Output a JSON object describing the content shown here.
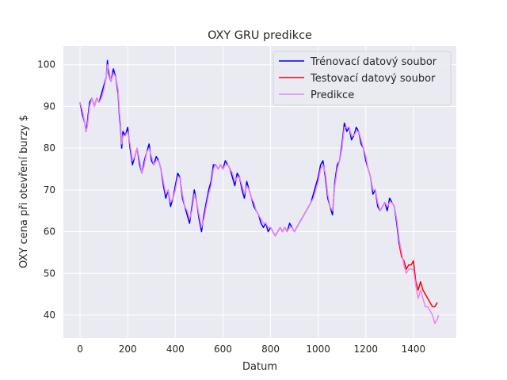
{
  "chart_data": {
    "type": "line",
    "title": "OXY GRU predikce",
    "xlabel": "Datum",
    "ylabel": "OXY cena při otevření burzy $",
    "xlim": [
      -70,
      1580
    ],
    "ylim": [
      34.5,
      104.5
    ],
    "x_ticks": [
      0,
      200,
      400,
      600,
      800,
      1000,
      1200,
      1400
    ],
    "y_ticks": [
      40,
      50,
      60,
      70,
      80,
      90,
      100
    ],
    "grid": true,
    "legend_position": "top-right",
    "colors": {
      "background": "#eaeaf2",
      "grid": "#ffffff",
      "train": "#0000ff",
      "test": "#ff0000",
      "prediction": "#ee82ee"
    },
    "series": [
      {
        "name": "Trénovací datový soubor",
        "color": "#0000ff",
        "points": [
          [
            0,
            91
          ],
          [
            10,
            88
          ],
          [
            20,
            86
          ],
          [
            25,
            84
          ],
          [
            30,
            86
          ],
          [
            40,
            91
          ],
          [
            50,
            92
          ],
          [
            60,
            90
          ],
          [
            70,
            92
          ],
          [
            80,
            91
          ],
          [
            90,
            93
          ],
          [
            100,
            95
          ],
          [
            110,
            97
          ],
          [
            115,
            101
          ],
          [
            120,
            98
          ],
          [
            130,
            96
          ],
          [
            140,
            99
          ],
          [
            150,
            97
          ],
          [
            160,
            93
          ],
          [
            165,
            88
          ],
          [
            170,
            85
          ],
          [
            175,
            80
          ],
          [
            180,
            84
          ],
          [
            190,
            83
          ],
          [
            200,
            85
          ],
          [
            210,
            80
          ],
          [
            220,
            76
          ],
          [
            230,
            78
          ],
          [
            240,
            80
          ],
          [
            250,
            76
          ],
          [
            260,
            74
          ],
          [
            270,
            77
          ],
          [
            280,
            79
          ],
          [
            290,
            81
          ],
          [
            300,
            77
          ],
          [
            310,
            76
          ],
          [
            320,
            78
          ],
          [
            330,
            77
          ],
          [
            340,
            75
          ],
          [
            350,
            71
          ],
          [
            360,
            68
          ],
          [
            370,
            70
          ],
          [
            380,
            66
          ],
          [
            390,
            68
          ],
          [
            400,
            71
          ],
          [
            410,
            74
          ],
          [
            420,
            73
          ],
          [
            430,
            68
          ],
          [
            440,
            66
          ],
          [
            450,
            64
          ],
          [
            460,
            62
          ],
          [
            470,
            66
          ],
          [
            480,
            70
          ],
          [
            490,
            67
          ],
          [
            500,
            63
          ],
          [
            510,
            60
          ],
          [
            520,
            64
          ],
          [
            530,
            67
          ],
          [
            540,
            70
          ],
          [
            550,
            72
          ],
          [
            560,
            76
          ],
          [
            570,
            76
          ],
          [
            580,
            75
          ],
          [
            590,
            76
          ],
          [
            600,
            75
          ],
          [
            610,
            77
          ],
          [
            620,
            76
          ],
          [
            630,
            75
          ],
          [
            640,
            73
          ],
          [
            650,
            71
          ],
          [
            660,
            74
          ],
          [
            670,
            73
          ],
          [
            680,
            70
          ],
          [
            690,
            68
          ],
          [
            700,
            72
          ],
          [
            710,
            70
          ],
          [
            720,
            68
          ],
          [
            730,
            66
          ],
          [
            740,
            65
          ],
          [
            750,
            64
          ],
          [
            760,
            62
          ],
          [
            770,
            61
          ],
          [
            780,
            62
          ],
          [
            790,
            60
          ],
          [
            800,
            61
          ],
          [
            810,
            60
          ],
          [
            820,
            59
          ],
          [
            830,
            60
          ],
          [
            840,
            61
          ],
          [
            850,
            60
          ],
          [
            860,
            61
          ],
          [
            870,
            60
          ],
          [
            880,
            62
          ],
          [
            890,
            61
          ],
          [
            900,
            60
          ],
          [
            910,
            61
          ],
          [
            920,
            62
          ],
          [
            930,
            63
          ],
          [
            940,
            64
          ],
          [
            950,
            65
          ],
          [
            960,
            66
          ],
          [
            970,
            67
          ],
          [
            980,
            69
          ],
          [
            990,
            71
          ],
          [
            1000,
            73
          ],
          [
            1010,
            76
          ],
          [
            1020,
            77
          ],
          [
            1030,
            73
          ],
          [
            1040,
            68
          ],
          [
            1050,
            66
          ],
          [
            1060,
            64
          ],
          [
            1070,
            72
          ],
          [
            1080,
            76
          ],
          [
            1090,
            77
          ],
          [
            1100,
            81
          ],
          [
            1110,
            86
          ],
          [
            1120,
            84
          ],
          [
            1130,
            85
          ],
          [
            1140,
            82
          ],
          [
            1150,
            83
          ],
          [
            1160,
            85
          ],
          [
            1170,
            84
          ],
          [
            1180,
            81
          ],
          [
            1190,
            80
          ],
          [
            1200,
            77
          ],
          [
            1210,
            75
          ],
          [
            1220,
            73
          ],
          [
            1230,
            69
          ],
          [
            1240,
            70
          ],
          [
            1250,
            66
          ],
          [
            1260,
            65
          ],
          [
            1270,
            66
          ],
          [
            1280,
            67
          ],
          [
            1290,
            65
          ],
          [
            1300,
            68
          ],
          [
            1310,
            67
          ],
          [
            1320,
            66
          ],
          [
            1330,
            62
          ],
          [
            1340,
            57
          ]
        ]
      },
      {
        "name": "Testovací datový soubor",
        "color": "#ff0000",
        "points": [
          [
            1340,
            57
          ],
          [
            1350,
            54
          ],
          [
            1360,
            53
          ],
          [
            1370,
            51
          ],
          [
            1380,
            52
          ],
          [
            1390,
            52
          ],
          [
            1400,
            53
          ],
          [
            1410,
            48
          ],
          [
            1420,
            46
          ],
          [
            1430,
            48
          ],
          [
            1440,
            46
          ],
          [
            1450,
            45
          ],
          [
            1460,
            44
          ],
          [
            1470,
            43
          ],
          [
            1480,
            42
          ],
          [
            1490,
            42
          ],
          [
            1500,
            43
          ]
        ]
      },
      {
        "name": "Predikce",
        "color": "#ee82ee",
        "points": [
          [
            0,
            91
          ],
          [
            10,
            89
          ],
          [
            20,
            86
          ],
          [
            25,
            84
          ],
          [
            30,
            85
          ],
          [
            40,
            90
          ],
          [
            50,
            92
          ],
          [
            60,
            90
          ],
          [
            70,
            92
          ],
          [
            80,
            91
          ],
          [
            90,
            92
          ],
          [
            100,
            94
          ],
          [
            110,
            97
          ],
          [
            115,
            100
          ],
          [
            120,
            99
          ],
          [
            130,
            96
          ],
          [
            140,
            98
          ],
          [
            150,
            97
          ],
          [
            160,
            94
          ],
          [
            165,
            89
          ],
          [
            170,
            86
          ],
          [
            175,
            81
          ],
          [
            180,
            83
          ],
          [
            190,
            83
          ],
          [
            200,
            84
          ],
          [
            210,
            81
          ],
          [
            220,
            77
          ],
          [
            230,
            78
          ],
          [
            240,
            80
          ],
          [
            250,
            77
          ],
          [
            260,
            74
          ],
          [
            270,
            76
          ],
          [
            280,
            79
          ],
          [
            290,
            80
          ],
          [
            300,
            78
          ],
          [
            310,
            76
          ],
          [
            320,
            77
          ],
          [
            330,
            77
          ],
          [
            340,
            75
          ],
          [
            350,
            72
          ],
          [
            360,
            69
          ],
          [
            370,
            70
          ],
          [
            380,
            67
          ],
          [
            390,
            68
          ],
          [
            400,
            70
          ],
          [
            410,
            73
          ],
          [
            420,
            73
          ],
          [
            430,
            69
          ],
          [
            440,
            66
          ],
          [
            450,
            65
          ],
          [
            460,
            63
          ],
          [
            470,
            65
          ],
          [
            480,
            69
          ],
          [
            490,
            67
          ],
          [
            500,
            64
          ],
          [
            510,
            61
          ],
          [
            520,
            63
          ],
          [
            530,
            66
          ],
          [
            540,
            69
          ],
          [
            550,
            71
          ],
          [
            560,
            75
          ],
          [
            570,
            76
          ],
          [
            580,
            75
          ],
          [
            590,
            76
          ],
          [
            600,
            75
          ],
          [
            610,
            76
          ],
          [
            620,
            76
          ],
          [
            630,
            75
          ],
          [
            640,
            74
          ],
          [
            650,
            72
          ],
          [
            660,
            73
          ],
          [
            670,
            73
          ],
          [
            680,
            71
          ],
          [
            690,
            69
          ],
          [
            700,
            71
          ],
          [
            710,
            70
          ],
          [
            720,
            68
          ],
          [
            730,
            67
          ],
          [
            740,
            65
          ],
          [
            750,
            64
          ],
          [
            760,
            63
          ],
          [
            770,
            62
          ],
          [
            780,
            62
          ],
          [
            790,
            61
          ],
          [
            800,
            61
          ],
          [
            810,
            60
          ],
          [
            820,
            59
          ],
          [
            830,
            60
          ],
          [
            840,
            61
          ],
          [
            850,
            60
          ],
          [
            860,
            61
          ],
          [
            870,
            60
          ],
          [
            880,
            61
          ],
          [
            890,
            61
          ],
          [
            900,
            60
          ],
          [
            910,
            61
          ],
          [
            920,
            62
          ],
          [
            930,
            63
          ],
          [
            940,
            64
          ],
          [
            950,
            65
          ],
          [
            960,
            66
          ],
          [
            970,
            67
          ],
          [
            980,
            68
          ],
          [
            990,
            70
          ],
          [
            1000,
            72
          ],
          [
            1010,
            75
          ],
          [
            1020,
            76
          ],
          [
            1030,
            74
          ],
          [
            1040,
            69
          ],
          [
            1050,
            66
          ],
          [
            1060,
            65
          ],
          [
            1070,
            71
          ],
          [
            1080,
            75
          ],
          [
            1090,
            77
          ],
          [
            1100,
            80
          ],
          [
            1110,
            85
          ],
          [
            1120,
            85
          ],
          [
            1130,
            85
          ],
          [
            1140,
            83
          ],
          [
            1150,
            83
          ],
          [
            1160,
            84
          ],
          [
            1170,
            84
          ],
          [
            1180,
            82
          ],
          [
            1190,
            80
          ],
          [
            1200,
            78
          ],
          [
            1210,
            75
          ],
          [
            1220,
            73
          ],
          [
            1230,
            70
          ],
          [
            1240,
            70
          ],
          [
            1250,
            67
          ],
          [
            1260,
            65
          ],
          [
            1270,
            66
          ],
          [
            1280,
            67
          ],
          [
            1290,
            66
          ],
          [
            1300,
            67
          ],
          [
            1310,
            67
          ],
          [
            1320,
            66
          ],
          [
            1330,
            63
          ],
          [
            1340,
            58
          ],
          [
            1350,
            55
          ],
          [
            1360,
            52
          ],
          [
            1370,
            50
          ],
          [
            1380,
            51
          ],
          [
            1390,
            51
          ],
          [
            1400,
            51
          ],
          [
            1410,
            47
          ],
          [
            1420,
            44
          ],
          [
            1430,
            46
          ],
          [
            1440,
            44
          ],
          [
            1450,
            42
          ],
          [
            1460,
            42
          ],
          [
            1470,
            41
          ],
          [
            1480,
            40
          ],
          [
            1490,
            38
          ],
          [
            1500,
            39
          ],
          [
            1505,
            40
          ]
        ]
      }
    ]
  }
}
